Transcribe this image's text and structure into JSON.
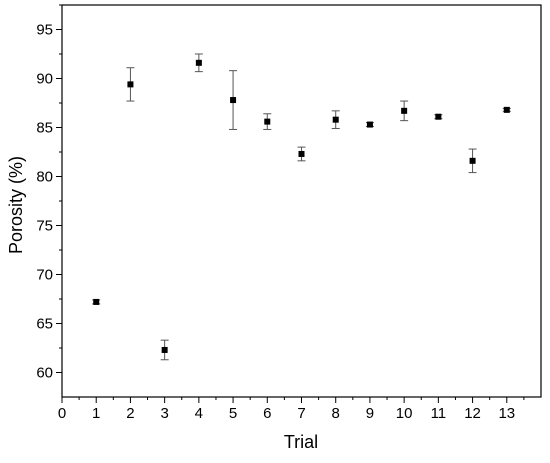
{
  "chart_data": {
    "type": "scatter",
    "title": "",
    "xlabel": "Trial",
    "ylabel": "Porosity (%)",
    "xlim": [
      0,
      14
    ],
    "ylim": [
      57.5,
      97.5
    ],
    "xticks": [
      0,
      1,
      2,
      3,
      4,
      5,
      6,
      7,
      8,
      9,
      10,
      11,
      12,
      13
    ],
    "yticks": [
      60,
      65,
      70,
      75,
      80,
      85,
      90,
      95
    ],
    "grid": false,
    "marker": "square",
    "marker_color": "#000000",
    "error_bar_color": "#555555",
    "series": [
      {
        "x": [
          1,
          2,
          3,
          4,
          5,
          6,
          7,
          8,
          9,
          10,
          11,
          12,
          13
        ],
        "y": [
          67.2,
          89.4,
          62.3,
          91.6,
          87.8,
          85.6,
          82.3,
          85.8,
          85.3,
          86.7,
          86.1,
          81.6,
          86.8
        ],
        "error": [
          0.2,
          1.7,
          1.0,
          0.9,
          3.0,
          0.8,
          0.7,
          0.9,
          0.2,
          1.0,
          0.2,
          1.2,
          0.15
        ]
      }
    ]
  }
}
